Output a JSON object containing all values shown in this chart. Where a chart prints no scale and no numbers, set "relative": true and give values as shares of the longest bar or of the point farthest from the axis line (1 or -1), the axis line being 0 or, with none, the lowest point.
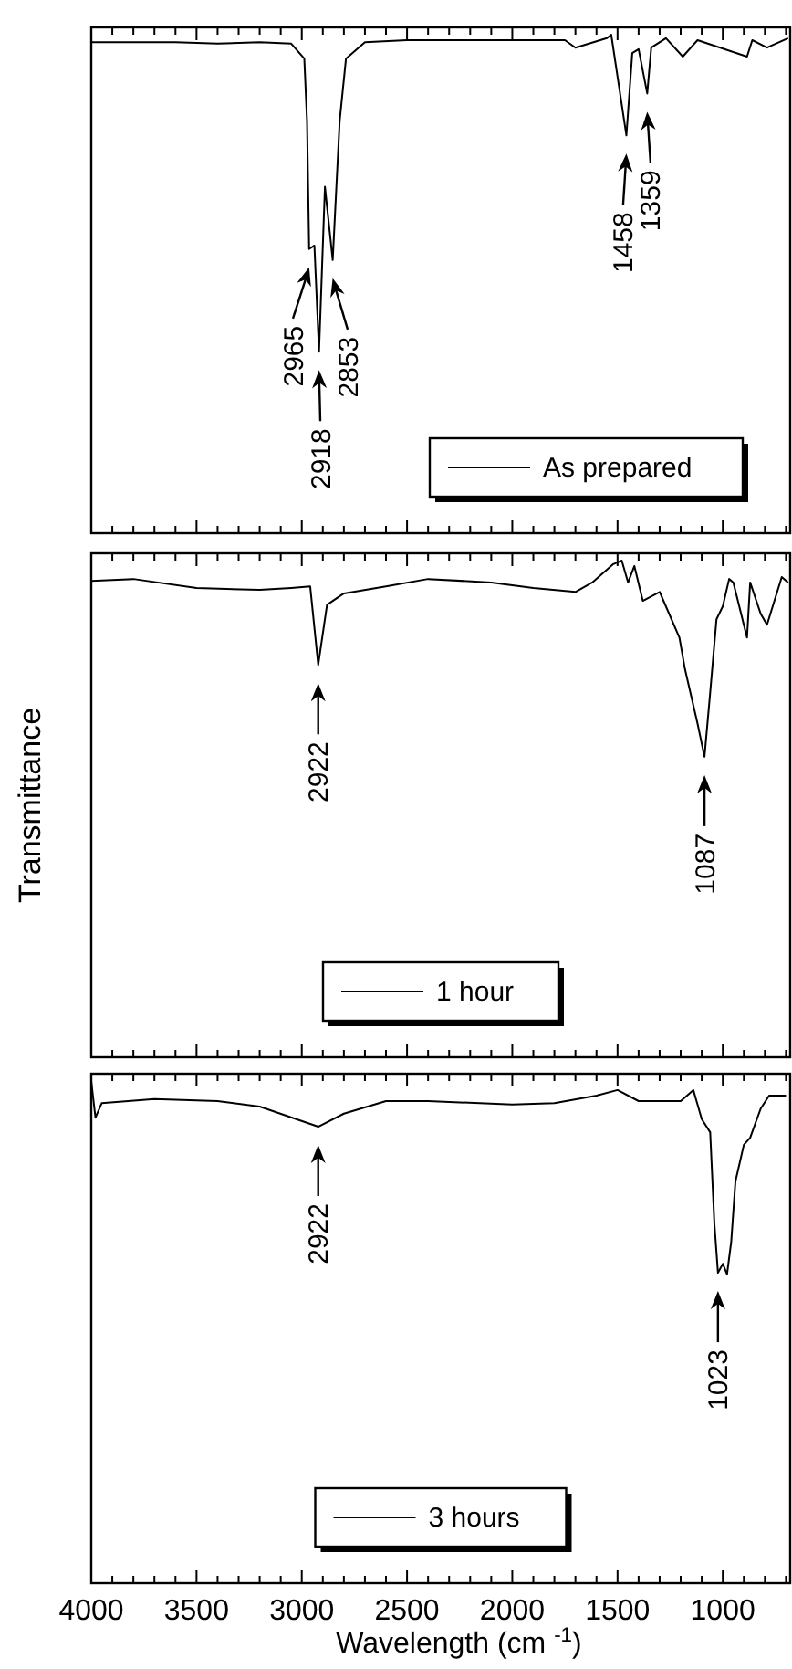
{
  "chart_data": [
    {
      "type": "line",
      "relative": true,
      "tick_labels": false,
      "legend": "bottom right",
      "xlim": [
        4000,
        680
      ],
      "xticks": [
        4000,
        {
          "value": 3900,
          "label": null
        },
        {
          "value": 3800,
          "label": null
        },
        {
          "value": 3700,
          "label": null
        },
        {
          "value": 3600,
          "label": null
        },
        3500,
        {
          "value": 3400,
          "label": null
        },
        {
          "value": 3300,
          "label": null
        },
        {
          "value": 3200,
          "label": null
        },
        {
          "value": 3100,
          "label": null
        },
        3000,
        {
          "value": 2900,
          "label": null
        },
        {
          "value": 2800,
          "label": null
        },
        {
          "value": 2700,
          "label": null
        },
        {
          "value": 2600,
          "label": null
        },
        2500,
        {
          "value": 2400,
          "label": null
        },
        {
          "value": 2300,
          "label": null
        },
        {
          "value": 2200,
          "label": null
        },
        {
          "value": 2100,
          "label": null
        },
        2000,
        {
          "value": 1900,
          "label": null
        },
        {
          "value": 1800,
          "label": null
        },
        {
          "value": 1700,
          "label": null
        },
        {
          "value": 1600,
          "label": null
        },
        1500,
        {
          "value": 1400,
          "label": null
        },
        {
          "value": 1300,
          "label": null
        },
        {
          "value": 1200,
          "label": null
        },
        {
          "value": 1100,
          "label": null
        },
        1000,
        {
          "value": 900,
          "label": null
        },
        {
          "value": 800,
          "label": null
        },
        {
          "value": 700,
          "label": null
        }
      ],
      "series": [
        {
          "name": "As prepared",
          "color": "#000000",
          "x": [
            4000,
            3600,
            3400,
            3200,
            3050,
            2988,
            2975,
            2965,
            2940,
            2918,
            2890,
            2853,
            2820,
            2790,
            2700,
            2500,
            2000,
            1750,
            1700,
            1550,
            1530,
            1458,
            1430,
            1400,
            1359,
            1340,
            1270,
            1190,
            1120,
            885,
            860,
            790,
            690
          ],
          "values": [
            0.985,
            0.985,
            0.982,
            0.985,
            0.982,
            0.952,
            0.827,
            0.57,
            0.577,
            0.364,
            0.695,
            0.548,
            0.827,
            0.952,
            0.985,
            0.989,
            0.989,
            0.989,
            0.974,
            0.993,
            1,
            0.798,
            0.963,
            0.971,
            0.882,
            0.974,
            0.993,
            0.956,
            0.989,
            0.956,
            0.989,
            0.974,
            0.993
          ]
        }
      ],
      "annotations": [
        {
          "text": "2965",
          "x": 2965,
          "y": 0.57
        },
        {
          "text": "2918",
          "x": 2918,
          "y": 0.364
        },
        {
          "text": "2853",
          "x": 2853,
          "y": 0.548
        },
        {
          "text": "1458",
          "x": 1458,
          "y": 0.798
        },
        {
          "text": "1359",
          "x": 1359,
          "y": 0.882
        }
      ]
    },
    {
      "type": "line",
      "relative": true,
      "tick_labels": false,
      "legend": "bottom",
      "ylabel": "Transmittance",
      "xlim": [
        4000,
        680
      ],
      "xticks": [
        4000,
        {
          "value": 3900,
          "label": null
        },
        {
          "value": 3800,
          "label": null
        },
        {
          "value": 3700,
          "label": null
        },
        {
          "value": 3600,
          "label": null
        },
        3500,
        {
          "value": 3400,
          "label": null
        },
        {
          "value": 3300,
          "label": null
        },
        {
          "value": 3200,
          "label": null
        },
        {
          "value": 3100,
          "label": null
        },
        3000,
        {
          "value": 2900,
          "label": null
        },
        {
          "value": 2800,
          "label": null
        },
        {
          "value": 2700,
          "label": null
        },
        {
          "value": 2600,
          "label": null
        },
        2500,
        {
          "value": 2400,
          "label": null
        },
        {
          "value": 2300,
          "label": null
        },
        {
          "value": 2200,
          "label": null
        },
        {
          "value": 2100,
          "label": null
        },
        2000,
        {
          "value": 1900,
          "label": null
        },
        {
          "value": 1800,
          "label": null
        },
        {
          "value": 1700,
          "label": null
        },
        {
          "value": 1600,
          "label": null
        },
        1500,
        {
          "value": 1400,
          "label": null
        },
        {
          "value": 1300,
          "label": null
        },
        {
          "value": 1200,
          "label": null
        },
        {
          "value": 1100,
          "label": null
        },
        1000,
        {
          "value": 900,
          "label": null
        },
        {
          "value": 800,
          "label": null
        },
        {
          "value": 700,
          "label": null
        }
      ],
      "series": [
        {
          "name": "1 hour",
          "color": "#000000",
          "x": [
            4000,
            3800,
            3500,
            3200,
            3050,
            2960,
            2922,
            2880,
            2800,
            2600,
            2400,
            2100,
            1900,
            1700,
            1620,
            1520,
            1480,
            1450,
            1420,
            1380,
            1300,
            1206,
            1180,
            1120,
            1087,
            1060,
            1030,
            1000,
            970,
            950,
            885,
            870,
            820,
            790,
            720,
            690
          ],
          "values": [
            0.959,
            0.963,
            0.945,
            0.941,
            0.945,
            0.948,
            0.79,
            0.911,
            0.934,
            0.948,
            0.963,
            0.956,
            0.945,
            0.937,
            0.956,
            0.993,
            1,
            0.956,
            0.989,
            0.919,
            0.937,
            0.845,
            0.782,
            0.672,
            0.605,
            0.734,
            0.882,
            0.908,
            0.963,
            0.956,
            0.845,
            0.956,
            0.893,
            0.871,
            0.967,
            0.956
          ]
        }
      ],
      "annotations": [
        {
          "text": "2922",
          "x": 2922,
          "y": 0.79
        },
        {
          "text": "1087",
          "x": 1087,
          "y": 0.605
        }
      ]
    },
    {
      "type": "line",
      "relative": true,
      "tick_labels": "x",
      "legend": "bottom",
      "xlabel": "Wavelength (cm $^{-1}$)",
      "xlim": [
        4000,
        680
      ],
      "xticks": [
        4000,
        {
          "value": 3900,
          "label": null
        },
        {
          "value": 3800,
          "label": null
        },
        {
          "value": 3700,
          "label": null
        },
        {
          "value": 3600,
          "label": null
        },
        3500,
        {
          "value": 3400,
          "label": null
        },
        {
          "value": 3300,
          "label": null
        },
        {
          "value": 3200,
          "label": null
        },
        {
          "value": 3100,
          "label": null
        },
        3000,
        {
          "value": 2900,
          "label": null
        },
        {
          "value": 2800,
          "label": null
        },
        {
          "value": 2700,
          "label": null
        },
        {
          "value": 2600,
          "label": null
        },
        2500,
        {
          "value": 2400,
          "label": null
        },
        {
          "value": 2300,
          "label": null
        },
        {
          "value": 2200,
          "label": null
        },
        {
          "value": 2100,
          "label": null
        },
        2000,
        {
          "value": 1900,
          "label": null
        },
        {
          "value": 1800,
          "label": null
        },
        {
          "value": 1700,
          "label": null
        },
        {
          "value": 1600,
          "label": null
        },
        1500,
        {
          "value": 1400,
          "label": null
        },
        {
          "value": 1300,
          "label": null
        },
        {
          "value": 1200,
          "label": null
        },
        {
          "value": 1100,
          "label": null
        },
        1000,
        {
          "value": 900,
          "label": null
        },
        {
          "value": 800,
          "label": null
        },
        {
          "value": 700,
          "label": null
        }
      ],
      "series": [
        {
          "name": "3 hours",
          "color": "#000000",
          "x": [
            4000,
            3980,
            3950,
            3700,
            3400,
            3200,
            2922,
            2800,
            2600,
            2400,
            2000,
            1800,
            1600,
            1500,
            1400,
            1200,
            1140,
            1100,
            1060,
            1040,
            1023,
            1000,
            980,
            960,
            940,
            900,
            870,
            820,
            780,
            700
          ],
          "values": [
            1,
            0.927,
            0.956,
            0.964,
            0.96,
            0.949,
            0.909,
            0.935,
            0.96,
            0.96,
            0.953,
            0.956,
            0.971,
            0.982,
            0.96,
            0.96,
            0.982,
            0.924,
            0.898,
            0.716,
            0.618,
            0.636,
            0.615,
            0.68,
            0.8,
            0.873,
            0.887,
            0.945,
            0.971,
            0.971
          ]
        }
      ],
      "annotations": [
        {
          "text": "2922",
          "x": 2922,
          "y": 0.909
        },
        {
          "text": "1023",
          "x": 1023,
          "y": 0.618
        }
      ]
    }
  ]
}
